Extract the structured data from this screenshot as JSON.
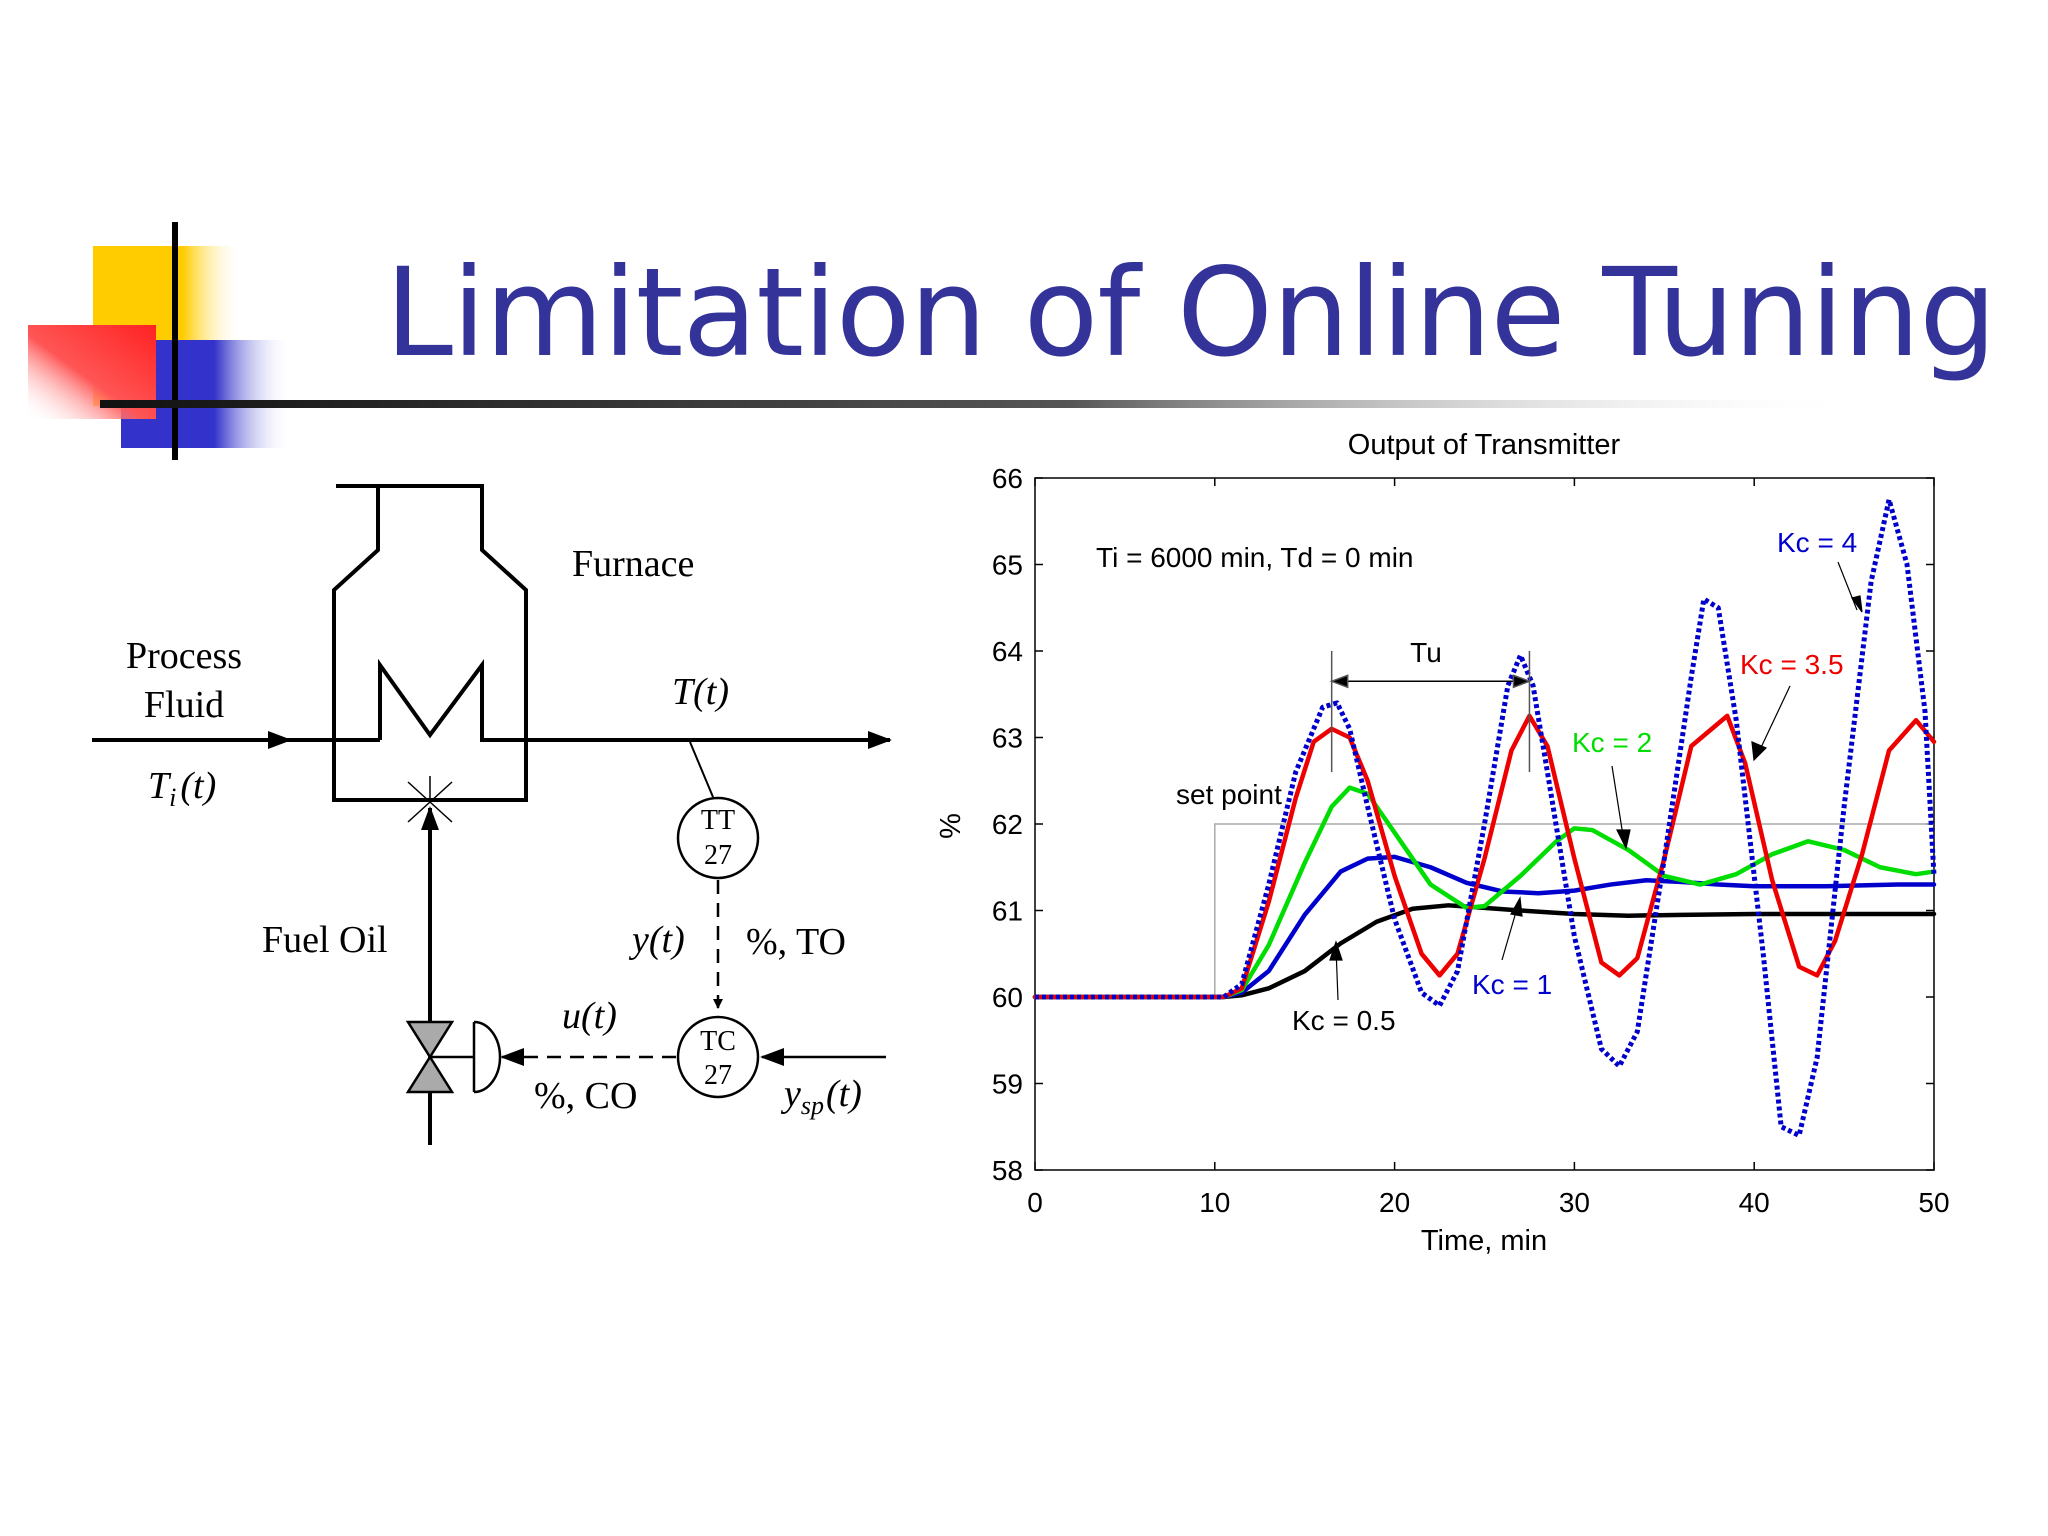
{
  "slide": {
    "title": "Limitation of Online Tuning",
    "colors": {
      "title": "#333399",
      "decor_yellow": "#ffcc00",
      "decor_red": "#ff3333",
      "decor_blue": "#3333cc"
    }
  },
  "diagram": {
    "furnace_label": "Furnace",
    "process_fluid_line1": "Process",
    "process_fluid_line2": "Fluid",
    "ti_label_T": "T",
    "ti_label_sub": "i",
    "ti_label_arg": "(t)",
    "t_label": "T(t)",
    "tt_label": "TT",
    "tt_number": "27",
    "tc_label": "TC",
    "tc_number": "27",
    "fuel_oil_label": "Fuel Oil",
    "y_label": "y(t)",
    "to_label": "%, TO",
    "u_label": "u(t)",
    "co_label": "%, CO",
    "ysp_label_y": "y",
    "ysp_label_sub": "sp",
    "ysp_label_arg": "(t)"
  },
  "chart_data": {
    "type": "line",
    "title": "Output of Transmitter",
    "xlabel": "Time, min",
    "ylabel": "%",
    "xlim": [
      0,
      50
    ],
    "ylim": [
      58,
      66
    ],
    "xticks": [
      0,
      10,
      20,
      30,
      40,
      50
    ],
    "yticks": [
      58,
      59,
      60,
      61,
      62,
      63,
      64,
      65,
      66
    ],
    "grid": false,
    "annotation_params": "Ti = 6000 min, Td = 0 min",
    "annotation_tu": "Tu",
    "annotation_setpoint": "set point",
    "tu_range": [
      16.5,
      27.5
    ],
    "setpoint": {
      "x": [
        10,
        10,
        50
      ],
      "y": [
        60,
        62,
        62
      ],
      "color": "#aaaaaa"
    },
    "series": [
      {
        "name": "Kc = 0.5",
        "color": "#000000",
        "style": "solid",
        "x": [
          0,
          10.5,
          11.5,
          13,
          15,
          17,
          19,
          21,
          23,
          25,
          27,
          30,
          33,
          36,
          40,
          45,
          50
        ],
        "y": [
          60,
          60,
          60.02,
          60.1,
          60.3,
          60.62,
          60.87,
          61.02,
          61.06,
          61.03,
          61.0,
          60.96,
          60.94,
          60.95,
          60.96,
          60.96,
          60.96
        ]
      },
      {
        "name": "Kc = 1",
        "color": "#0000cc",
        "style": "solid",
        "x": [
          0,
          10.5,
          11.5,
          13,
          15,
          17,
          18.5,
          20,
          22,
          24,
          26,
          28,
          30,
          32,
          34,
          36,
          38,
          40,
          44,
          48,
          50
        ],
        "y": [
          60,
          60,
          60.05,
          60.3,
          60.95,
          61.45,
          61.6,
          61.62,
          61.5,
          61.32,
          61.22,
          61.2,
          61.23,
          61.3,
          61.35,
          61.33,
          61.3,
          61.28,
          61.28,
          61.3,
          61.3
        ]
      },
      {
        "name": "Kc = 2",
        "color": "#00dd00",
        "style": "solid",
        "x": [
          0,
          10.5,
          11.5,
          13,
          15,
          16.5,
          17.5,
          18.5,
          20,
          22,
          24,
          25,
          27,
          29,
          30,
          31,
          33,
          35,
          37,
          39,
          41,
          43,
          45,
          47,
          49,
          50
        ],
        "y": [
          60,
          60,
          60.08,
          60.6,
          61.55,
          62.2,
          62.42,
          62.35,
          61.9,
          61.3,
          61.03,
          61.05,
          61.4,
          61.8,
          61.95,
          61.93,
          61.7,
          61.4,
          61.3,
          61.42,
          61.65,
          61.8,
          61.7,
          61.5,
          61.42,
          61.45
        ]
      },
      {
        "name": "Kc = 3.5",
        "color": "#ee0000",
        "style": "solid",
        "x": [
          0,
          10.5,
          11.5,
          13,
          14.5,
          15.5,
          16.5,
          17.5,
          18.5,
          20,
          21.5,
          22.5,
          23.5,
          25,
          26.5,
          27.5,
          28.5,
          30,
          31.5,
          32.5,
          33.5,
          35,
          36.5,
          38.5,
          39.5,
          41,
          42.5,
          43.5,
          44.5,
          46,
          47.5,
          49,
          50
        ],
        "y": [
          60,
          60,
          60.1,
          61.1,
          62.3,
          62.95,
          63.1,
          63.0,
          62.5,
          61.4,
          60.5,
          60.25,
          60.5,
          61.6,
          62.85,
          63.25,
          62.9,
          61.6,
          60.4,
          60.25,
          60.45,
          61.6,
          62.9,
          63.25,
          62.7,
          61.35,
          60.35,
          60.25,
          60.65,
          61.65,
          62.85,
          63.2,
          62.95
        ]
      },
      {
        "name": "Kc = 4",
        "color": "#0000cc",
        "style": "dotted",
        "x": [
          0,
          10.5,
          11.5,
          13,
          14.5,
          16,
          16.8,
          17.5,
          18.5,
          20,
          21.5,
          22.5,
          23.5,
          25,
          26.3,
          27,
          27.7,
          28.5,
          30,
          31.5,
          32.5,
          33.5,
          35,
          36.5,
          37.2,
          38,
          39,
          40.5,
          41.5,
          42.5,
          43.5,
          45,
          46.5,
          47.5,
          48.5,
          49.5,
          50
        ],
        "y": [
          60,
          60,
          60.15,
          61.3,
          62.6,
          63.35,
          63.4,
          63.1,
          62.2,
          60.9,
          60.05,
          59.9,
          60.3,
          62.0,
          63.6,
          63.95,
          63.6,
          62.6,
          60.7,
          59.4,
          59.2,
          59.6,
          61.6,
          63.7,
          64.6,
          64.5,
          63.2,
          60.5,
          58.5,
          58.4,
          59.3,
          62.2,
          64.8,
          65.75,
          65.0,
          63.3,
          61.4
        ]
      }
    ],
    "labels": [
      {
        "text": "Kc = 4",
        "color": "#0000cc"
      },
      {
        "text": "Kc = 3.5",
        "color": "#ee0000"
      },
      {
        "text": "Kc = 2",
        "color": "#00dd00"
      },
      {
        "text": "Kc = 1",
        "color": "#0000cc"
      },
      {
        "text": "Kc = 0.5",
        "color": "#000000"
      }
    ]
  }
}
